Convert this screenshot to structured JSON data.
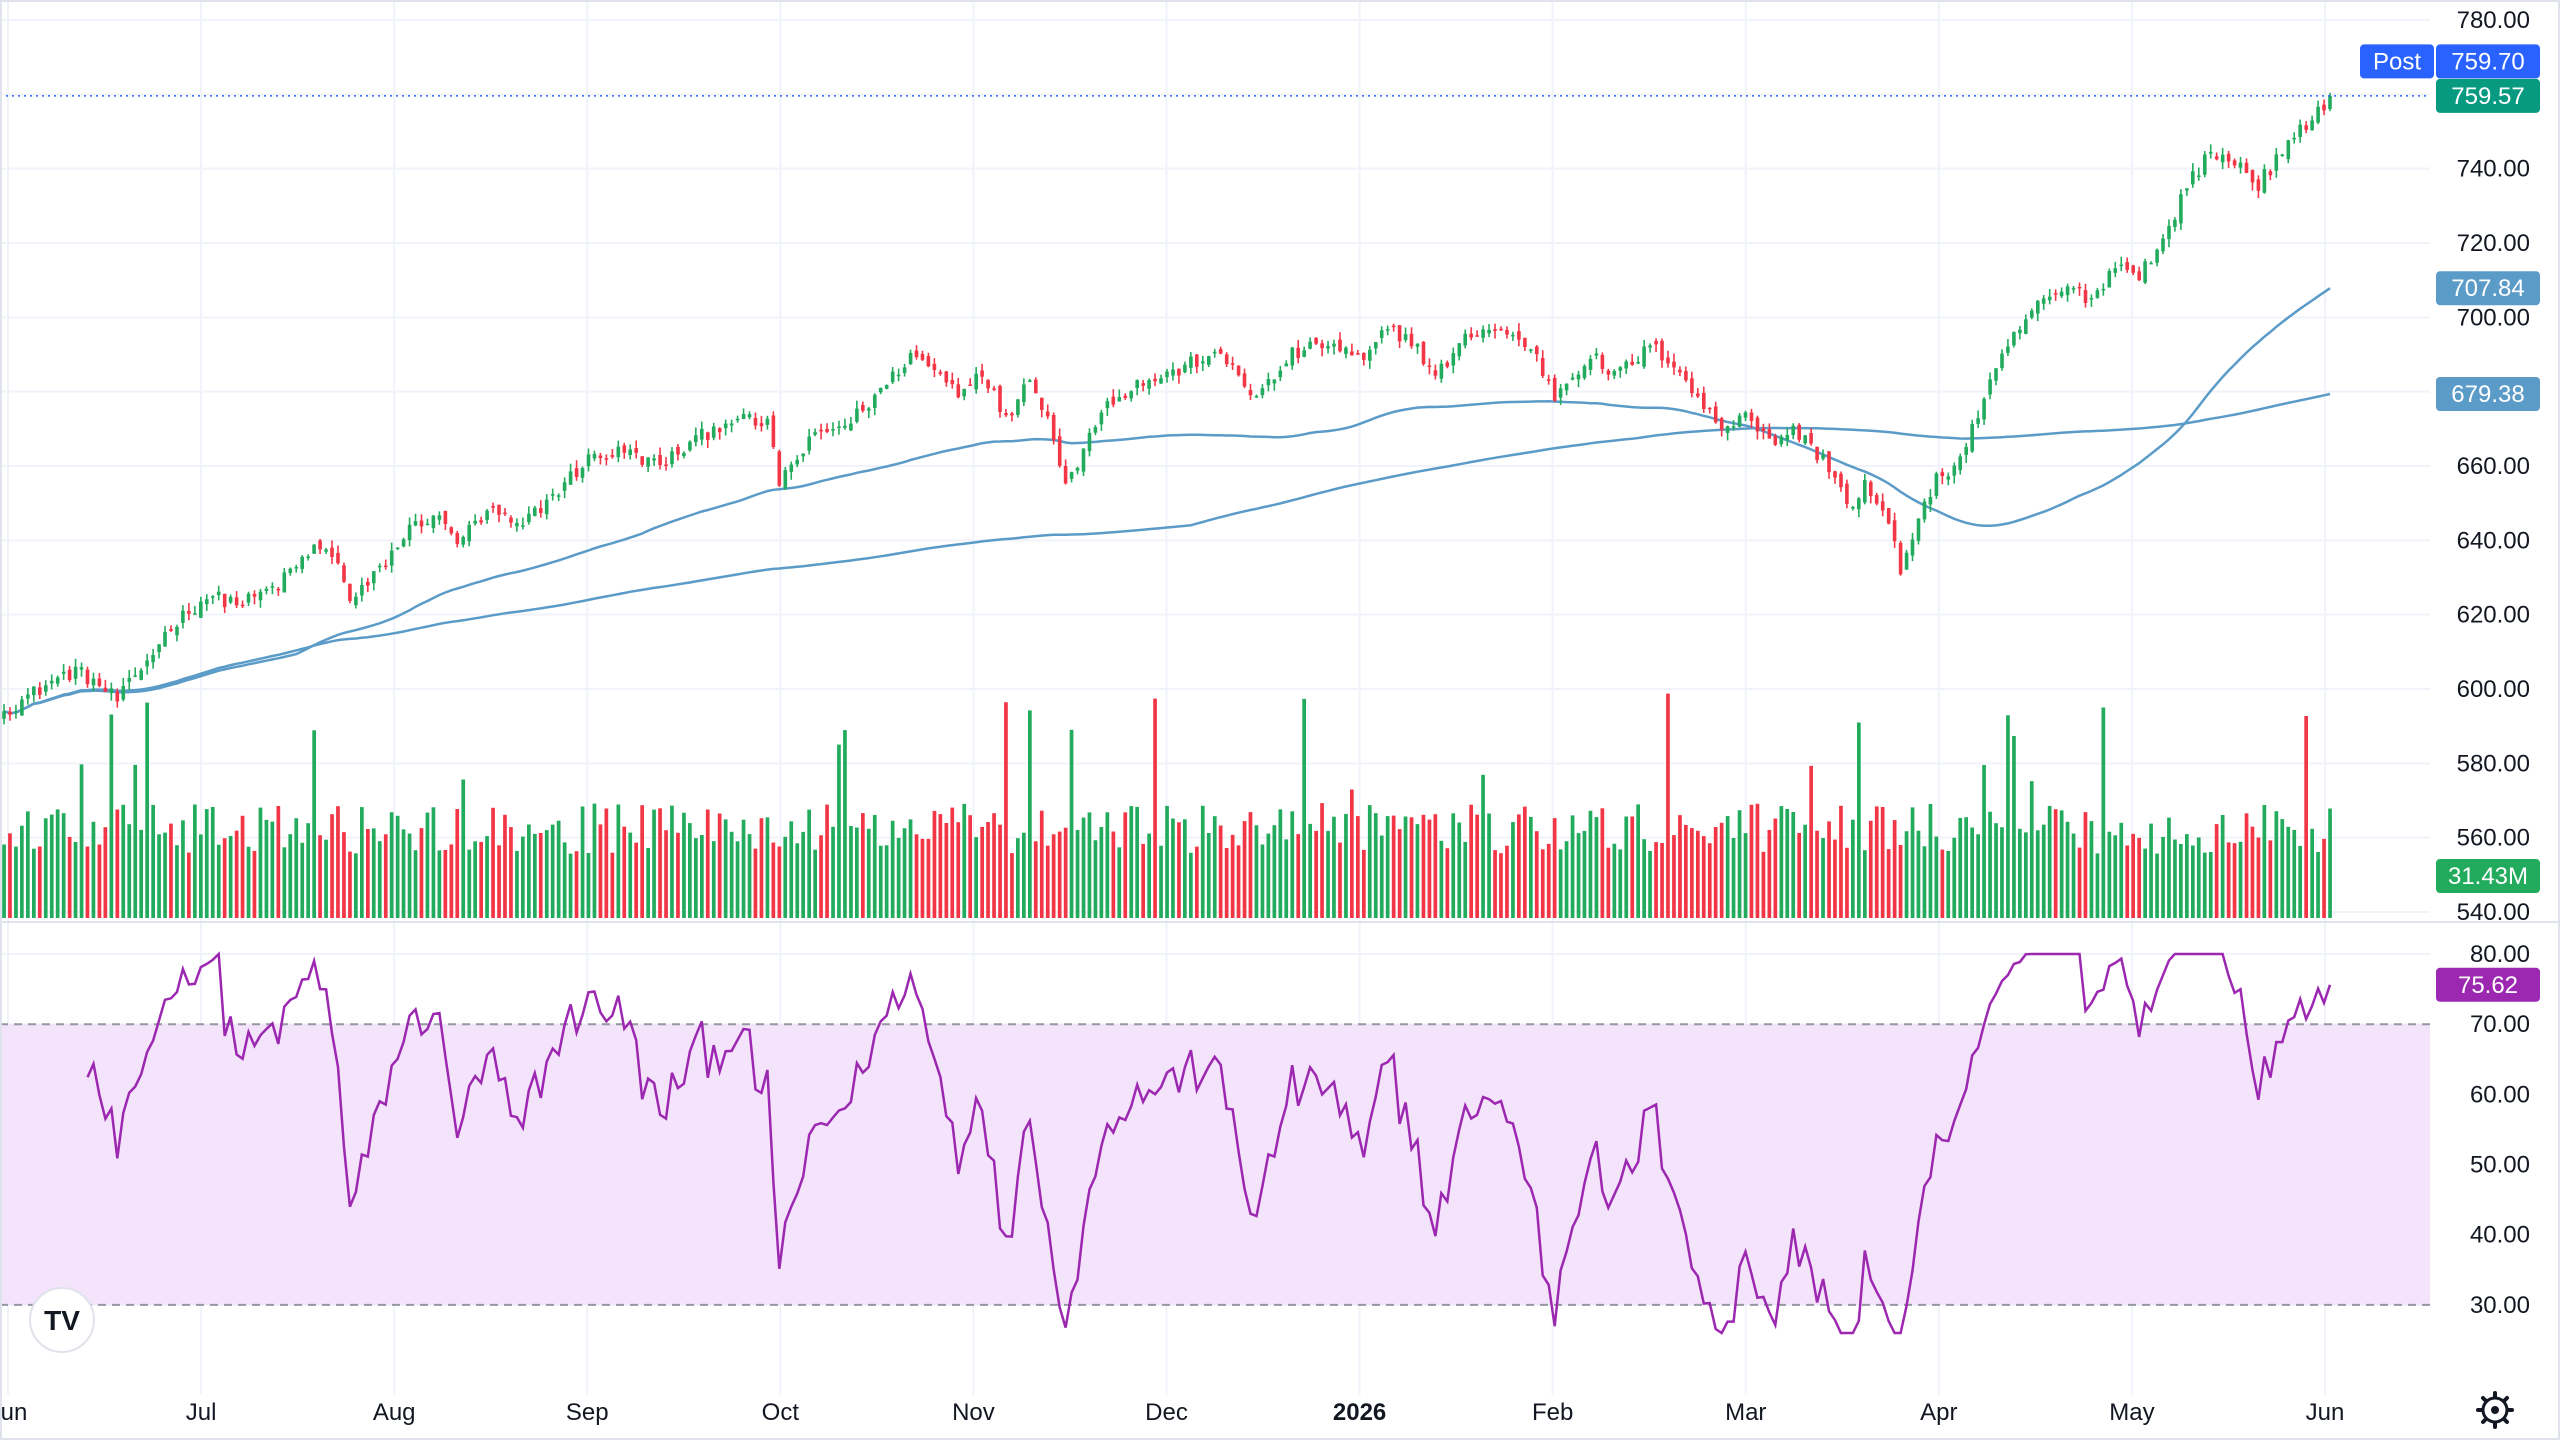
{
  "chart_data": {
    "type": "candlestick",
    "price_axis": {
      "ticks": [
        540,
        560,
        580,
        600,
        620,
        640,
        660,
        680,
        700,
        720,
        740,
        760,
        780
      ],
      "range": [
        540,
        780
      ]
    },
    "rsi_axis": {
      "ticks": [
        30,
        40,
        50,
        60,
        70,
        80
      ],
      "range": [
        25,
        82
      ],
      "upper_band": 70,
      "lower_band": 30
    },
    "time_axis": [
      {
        "label": "Jun",
        "month": 0
      },
      {
        "label": "Jul",
        "month": 1
      },
      {
        "label": "Aug",
        "month": 2
      },
      {
        "label": "Sep",
        "month": 3
      },
      {
        "label": "Oct",
        "month": 4
      },
      {
        "label": "Nov",
        "month": 5
      },
      {
        "label": "Dec",
        "month": 6
      },
      {
        "label": "2026",
        "month": 7,
        "bold": true
      },
      {
        "label": "Feb",
        "month": 8
      },
      {
        "label": "Mar",
        "month": 9
      },
      {
        "label": "Apr",
        "month": 10
      },
      {
        "label": "May",
        "month": 11
      },
      {
        "label": "Jun",
        "month": 12
      }
    ],
    "close_anchors": [
      [
        0,
        594
      ],
      [
        8,
        602
      ],
      [
        12,
        605
      ],
      [
        16,
        601
      ],
      [
        19,
        597
      ],
      [
        22,
        603
      ],
      [
        28,
        617
      ],
      [
        34,
        625
      ],
      [
        40,
        623
      ],
      [
        46,
        628
      ],
      [
        52,
        638
      ],
      [
        56,
        635
      ],
      [
        58,
        623
      ],
      [
        62,
        630
      ],
      [
        68,
        643
      ],
      [
        72,
        647
      ],
      [
        76,
        640
      ],
      [
        82,
        648
      ],
      [
        86,
        643
      ],
      [
        92,
        652
      ],
      [
        98,
        662
      ],
      [
        104,
        664
      ],
      [
        110,
        660
      ],
      [
        116,
        667
      ],
      [
        122,
        673
      ],
      [
        128,
        671
      ],
      [
        130,
        656
      ],
      [
        136,
        668
      ],
      [
        142,
        672
      ],
      [
        148,
        682
      ],
      [
        152,
        690
      ],
      [
        156,
        686
      ],
      [
        160,
        680
      ],
      [
        164,
        686
      ],
      [
        168,
        672
      ],
      [
        172,
        685
      ],
      [
        176,
        668
      ],
      [
        178,
        656
      ],
      [
        180,
        660
      ],
      [
        184,
        676
      ],
      [
        190,
        682
      ],
      [
        196,
        685
      ],
      [
        202,
        690
      ],
      [
        206,
        687
      ],
      [
        210,
        678
      ],
      [
        216,
        690
      ],
      [
        222,
        693
      ],
      [
        228,
        688
      ],
      [
        232,
        697
      ],
      [
        236,
        694
      ],
      [
        240,
        684
      ],
      [
        246,
        696
      ],
      [
        250,
        697
      ],
      [
        256,
        692
      ],
      [
        260,
        679
      ],
      [
        266,
        690
      ],
      [
        270,
        684
      ],
      [
        276,
        692
      ],
      [
        280,
        688
      ],
      [
        284,
        678
      ],
      [
        288,
        670
      ],
      [
        292,
        675
      ],
      [
        296,
        666
      ],
      [
        300,
        670
      ],
      [
        306,
        660
      ],
      [
        310,
        648
      ],
      [
        312,
        655
      ],
      [
        316,
        644
      ],
      [
        318,
        632
      ],
      [
        320,
        642
      ],
      [
        324,
        656
      ],
      [
        328,
        662
      ],
      [
        332,
        678
      ],
      [
        336,
        692
      ],
      [
        340,
        702
      ],
      [
        346,
        708
      ],
      [
        350,
        705
      ],
      [
        354,
        714
      ],
      [
        358,
        712
      ],
      [
        362,
        720
      ],
      [
        366,
        736
      ],
      [
        370,
        744
      ],
      [
        374,
        742
      ],
      [
        378,
        736
      ],
      [
        382,
        744
      ],
      [
        386,
        752
      ],
      [
        390,
        759.57
      ]
    ],
    "moving_averages": [
      {
        "label": "707.84",
        "value": 707.84,
        "color": "#5b9bc8"
      },
      {
        "label": "679.38",
        "value": 679.38,
        "color": "#5b9bc8"
      }
    ],
    "price_badges": [
      {
        "prefix": "Post",
        "label": "759.70",
        "value": 759.7,
        "color": "#2962ff"
      },
      {
        "label": "759.57",
        "value": 759.57,
        "color": "#089981"
      }
    ],
    "volume_badge": {
      "label": "31.43M",
      "color": "#22ab5c"
    },
    "rsi_badge": {
      "label": "75.62",
      "value": 75.62,
      "color": "#9c27b0"
    },
    "colors": {
      "up": "#22ab5c",
      "down": "#f23645",
      "rsi_line": "#9c27b0",
      "rsi_band": "#f3e3fb",
      "grid": "#f0f3fa",
      "ma": "#5b9bc8"
    }
  },
  "icons": {
    "logo": "tradingview-logo-icon",
    "settings": "gear-icon"
  },
  "logo": {
    "text": "TV"
  }
}
